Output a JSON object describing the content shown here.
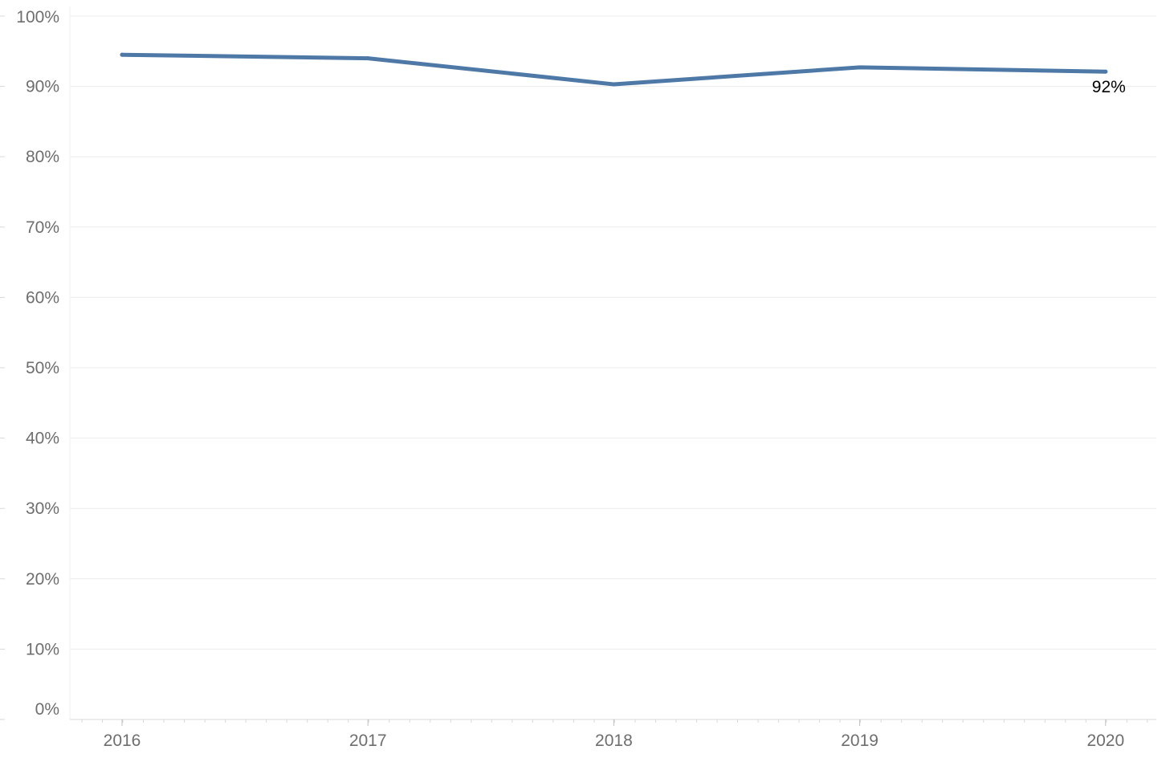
{
  "chart_data": {
    "type": "line",
    "title": "",
    "xlabel": "",
    "ylabel": "",
    "categories": [
      "2016",
      "2017",
      "2018",
      "2019",
      "2020"
    ],
    "x": [
      2016,
      2017,
      2018,
      2019,
      2020
    ],
    "series": [
      {
        "values": [
          94.5,
          94.0,
          90.3,
          92.7,
          92.1
        ],
        "color": "#4e79a7"
      }
    ],
    "ylim": [
      0,
      100
    ],
    "y_ticks": [
      0,
      10,
      20,
      30,
      40,
      50,
      60,
      70,
      80,
      90,
      100
    ],
    "y_tick_labels": [
      "0%",
      "10%",
      "20%",
      "30%",
      "40%",
      "50%",
      "60%",
      "70%",
      "80%",
      "90%",
      "100%"
    ],
    "x_tick_labels": [
      "2016",
      "2017",
      "2018",
      "2019",
      "2020"
    ],
    "data_labels": [
      {
        "index": 4,
        "text": "92%"
      }
    ],
    "grid": true,
    "legend": "none",
    "colors": {
      "line": "#4e79a7",
      "grid": "#ececec",
      "axis": "#d9d9d9",
      "tick_text": "#6e6e6e",
      "label_text": "#000000"
    }
  }
}
